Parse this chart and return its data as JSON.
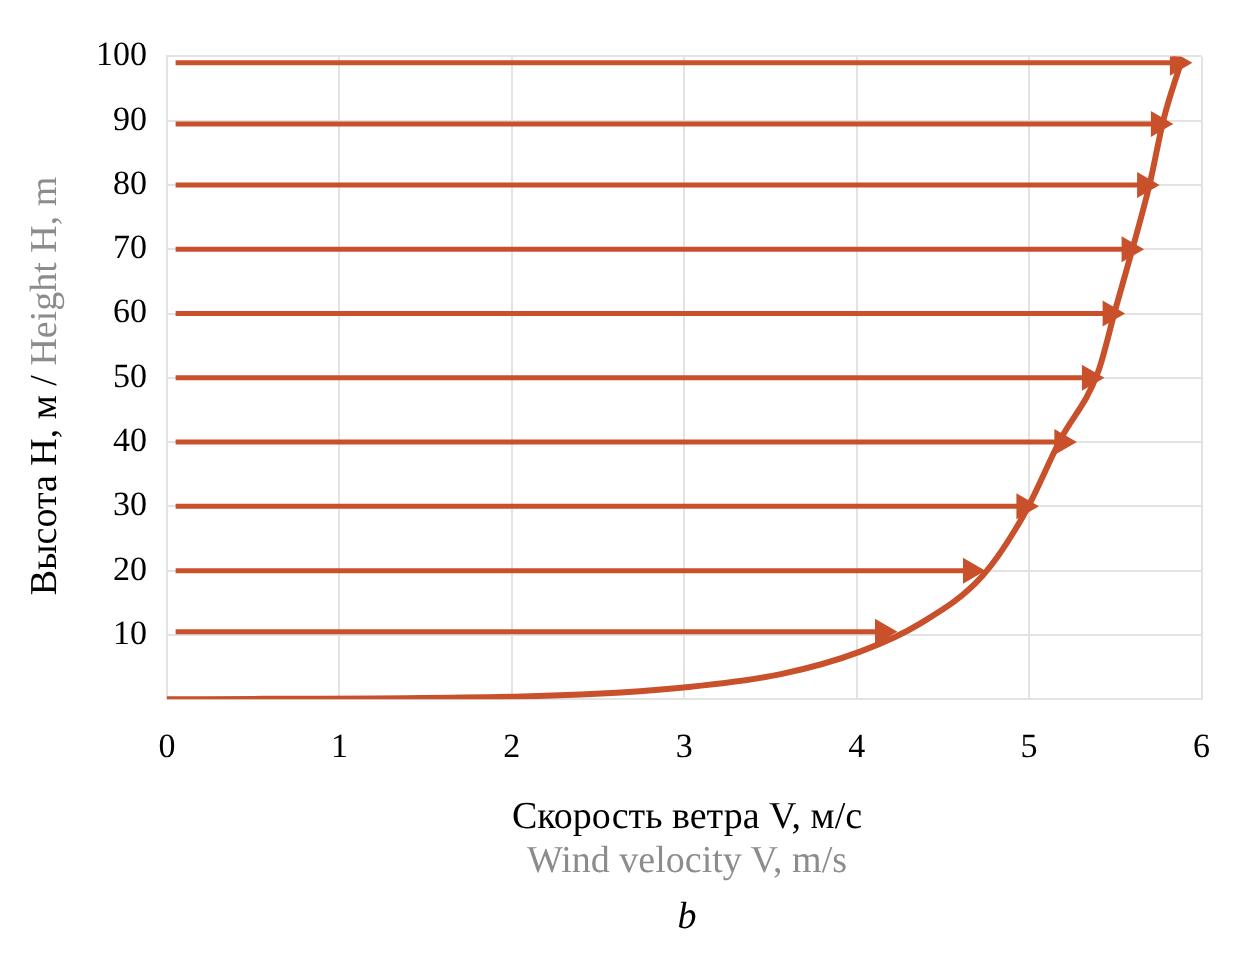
{
  "chart_data": {
    "type": "line",
    "xlabel": "Скорость ветра V, м/с\nWind velocity V, m/s",
    "ylabel": "Высота H, м / Height H, m",
    "annotations": [
      "b"
    ],
    "xlim": [
      0,
      6
    ],
    "xticks": [
      0,
      1,
      2,
      3,
      4,
      5,
      6
    ],
    "ylim": [
      0,
      100
    ],
    "yticks": [
      {
        "value": 0,
        "label": null
      },
      10,
      20,
      30,
      40,
      50,
      60,
      70,
      80,
      90,
      100
    ],
    "grid": true,
    "legend": false,
    "series": [
      {
        "color": "#c8502a",
        "marker": "none",
        "x": [
          0,
          2.02,
          2.95,
          3.56,
          4.02,
          4.37,
          4.73,
          4.97,
          5.18,
          5.4,
          5.5,
          5.6,
          5.7,
          5.78,
          5.88
        ],
        "values": [
          0,
          0.4,
          1.7,
          3.9,
          7.4,
          11.8,
          19.2,
          28.7,
          40.3,
          50.9,
          60.6,
          70.1,
          80.2,
          90.2,
          99
        ]
      },
      {
        "color": "#c8502a",
        "marker": "triangle",
        "x": [
          0.05,
          4.15
        ],
        "values": [
          10.5,
          10.5
        ]
      },
      {
        "color": "#c8502a",
        "marker": "triangle",
        "x": [
          0.05,
          4.66
        ],
        "values": [
          20,
          20
        ]
      },
      {
        "color": "#c8502a",
        "marker": "triangle",
        "x": [
          0.05,
          4.97
        ],
        "values": [
          30,
          30
        ]
      },
      {
        "color": "#c8502a",
        "marker": "triangle",
        "x": [
          0.05,
          5.19
        ],
        "values": [
          40,
          40
        ]
      },
      {
        "color": "#c8502a",
        "marker": "triangle",
        "x": [
          0.05,
          5.35
        ],
        "values": [
          50,
          50
        ]
      },
      {
        "color": "#c8502a",
        "marker": "triangle",
        "x": [
          0.05,
          5.47
        ],
        "values": [
          60,
          60
        ]
      },
      {
        "color": "#c8502a",
        "marker": "triangle",
        "x": [
          0.05,
          5.58
        ],
        "values": [
          70,
          70
        ]
      },
      {
        "color": "#c8502a",
        "marker": "triangle",
        "x": [
          0.05,
          5.67
        ],
        "values": [
          80,
          80
        ]
      },
      {
        "color": "#c8502a",
        "marker": "triangle",
        "x": [
          0.05,
          5.75
        ],
        "values": [
          89.5,
          89.5
        ]
      },
      {
        "color": "#c8502a",
        "marker": "triangle",
        "x": [
          0.05,
          5.86
        ],
        "values": [
          99,
          99
        ]
      }
    ]
  }
}
